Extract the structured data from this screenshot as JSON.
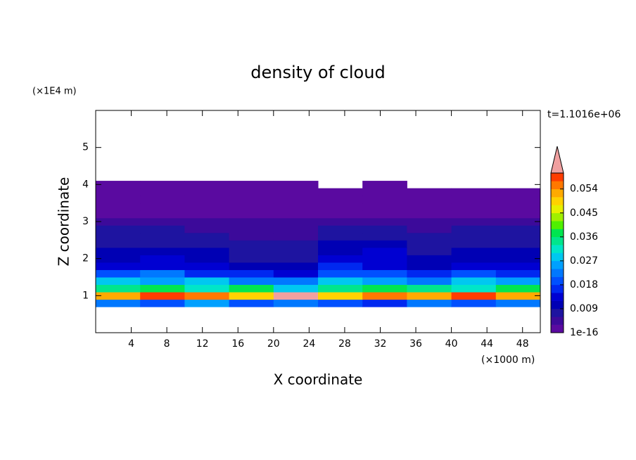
{
  "chart_data": {
    "type": "contour",
    "title": "density of cloud",
    "x_label": "X coordinate",
    "y_label": "Z coordinate",
    "x_unit": "(×1000 m)",
    "y_unit": "(×1E4 m)",
    "time_label": "t=1.1016e+06",
    "xlim": [
      0,
      50
    ],
    "xticks": [
      4,
      8,
      12,
      16,
      20,
      24,
      28,
      32,
      36,
      40,
      44,
      48
    ],
    "ylim": [
      0,
      6
    ],
    "yticks": [
      1,
      2,
      3,
      4,
      5
    ],
    "x": [
      2.5,
      7.5,
      12.5,
      17.5,
      22.5,
      27.5,
      32.5,
      37.5,
      42.5,
      47.5
    ],
    "y": [
      0.8,
      1.0,
      1.2,
      1.4,
      1.6,
      1.8,
      2.0,
      2.2,
      2.4,
      2.6,
      2.8,
      3.0,
      3.2,
      3.4,
      3.6,
      3.8,
      4.0
    ],
    "values": [
      [
        0.021,
        0.019,
        0.024,
        0.018,
        0.022,
        0.02,
        0.017,
        0.023,
        0.019,
        0.021
      ],
      [
        0.052,
        0.058,
        0.055,
        0.049,
        0.062,
        0.05,
        0.056,
        0.053,
        0.057,
        0.051
      ],
      [
        0.034,
        0.038,
        0.031,
        0.036,
        0.029,
        0.033,
        0.037,
        0.035,
        0.032,
        0.036
      ],
      [
        0.027,
        0.024,
        0.029,
        0.022,
        0.021,
        0.028,
        0.026,
        0.023,
        0.027,
        0.025
      ],
      [
        0.019,
        0.021,
        0.017,
        0.015,
        0.014,
        0.02,
        0.018,
        0.016,
        0.019,
        0.017
      ],
      [
        0.014,
        0.013,
        0.012,
        0.01,
        0.009,
        0.015,
        0.013,
        0.011,
        0.012,
        0.014
      ],
      [
        0.011,
        0.012,
        0.01,
        0.008,
        0.007,
        0.013,
        0.014,
        0.009,
        0.01,
        0.011
      ],
      [
        0.009,
        0.01,
        0.009,
        0.007,
        0.006,
        0.011,
        0.012,
        0.008,
        0.009,
        0.01
      ],
      [
        0.008,
        0.008,
        0.007,
        0.006,
        0.006,
        0.009,
        0.01,
        0.007,
        0.008,
        0.008
      ],
      [
        0.007,
        0.007,
        0.006,
        0.005,
        0.005,
        0.007,
        0.008,
        0.006,
        0.007,
        0.007
      ],
      [
        0.006,
        0.006,
        0.005,
        0.005,
        0.004,
        0.006,
        0.006,
        0.005,
        0.006,
        0.006
      ],
      [
        0.004,
        0.005,
        0.004,
        0.004,
        0.004,
        0.005,
        0.005,
        0.004,
        0.005,
        0.004
      ],
      [
        0.002,
        0.002,
        0.002,
        0.002,
        0.002,
        0.002,
        0.002,
        0.002,
        0.002,
        0.002
      ],
      [
        0.001,
        0.001,
        0.001,
        0.001,
        0.001,
        0.001,
        0.001,
        0.001,
        0.001,
        0.001
      ],
      [
        0.001,
        0.001,
        0.001,
        0.001,
        0.001,
        0.001,
        0.001,
        0.001,
        0.001,
        0.001
      ],
      [
        0.001,
        0.001,
        0.001,
        0.001,
        0.001,
        0.001,
        0.001,
        0.001,
        0.001,
        0.001
      ],
      [
        0.001,
        0.001,
        0.001,
        0.001,
        0.001,
        null,
        0.001,
        null,
        null,
        null
      ]
    ],
    "clim": [
      0,
      0.06
    ],
    "cticks": [
      1e-16,
      0.009,
      0.018,
      0.027,
      0.036,
      0.045,
      0.054
    ],
    "colors": [
      "#5a0aa0",
      "#3c0a9a",
      "#1e14a0",
      "#0000b4",
      "#0000d2",
      "#0028f0",
      "#0050ff",
      "#0078ff",
      "#00a0ff",
      "#00c8f0",
      "#00e6c8",
      "#00e68c",
      "#00e650",
      "#50f000",
      "#a0f000",
      "#e6f000",
      "#ffd200",
      "#ffaa00",
      "#ff7800",
      "#ff3c00"
    ],
    "over_color": "#f0a0a0"
  }
}
